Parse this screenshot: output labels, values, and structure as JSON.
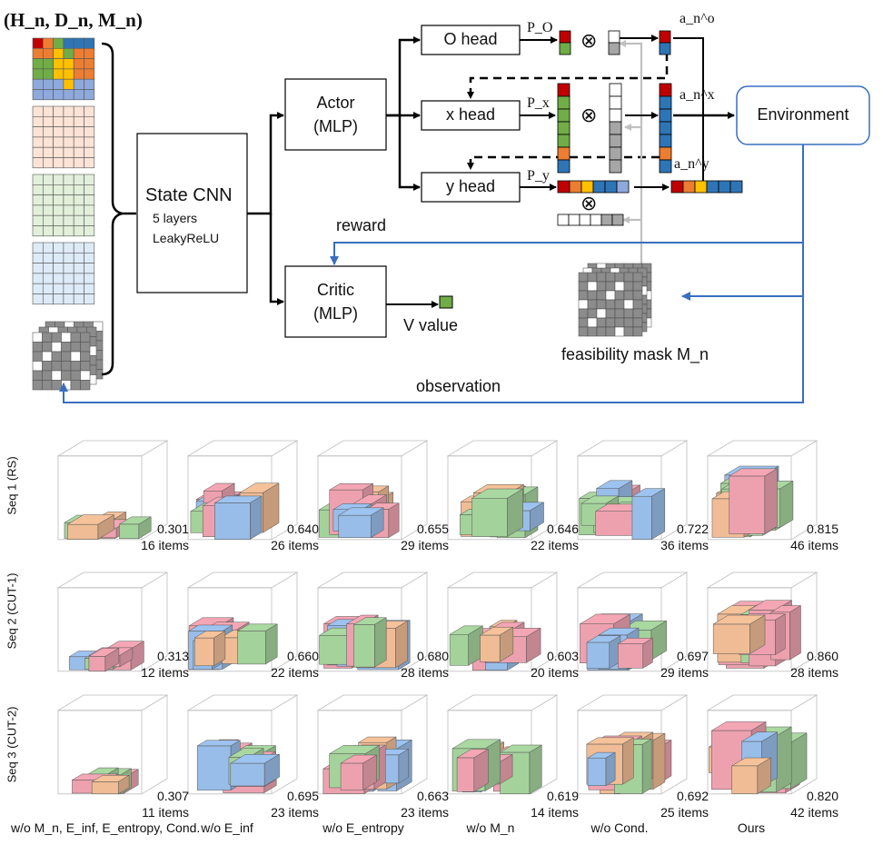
{
  "diagram": {
    "input_label": "(H_n, D_n, M_n)",
    "state_cnn": {
      "title": "State CNN",
      "line1": "5 layers",
      "line2": "LeakyReLU"
    },
    "actor": {
      "line1": "Actor",
      "line2": "(MLP)"
    },
    "critic": {
      "line1": "Critic",
      "line2": "(MLP)"
    },
    "heads": {
      "o": "O head",
      "x": "x head",
      "y": "y head"
    },
    "probs": {
      "o": "P_O",
      "x": "P_x",
      "y": "P_y"
    },
    "actions": {
      "o": "a_n^o",
      "x": "a_n^x",
      "y": "a_n^y"
    },
    "op_symbol": "⊗",
    "environment": "Environment",
    "reward": "reward",
    "observation": "observation",
    "v_value": "V value",
    "feasibility_mask": "feasibility mask M_n",
    "colors": {
      "arrow_blue": "#3a6fbf",
      "mask_arrow": "#c0c0c0",
      "red": "#c00000",
      "green": "#70ad47",
      "blue": "#2e75b6",
      "yellow": "#ffc000",
      "orange": "#ed7d31",
      "gray": "#a6a6a6"
    }
  },
  "results": {
    "row_labels": [
      "Seq 1 (RS)",
      "Seq 2 (CUT-1)",
      "Seq 3 (CUT-2)"
    ],
    "rows": [
      [
        {
          "score": "0.301",
          "items": "16 items"
        },
        {
          "score": "0.640",
          "items": "26 items"
        },
        {
          "score": "0.655",
          "items": "29 items"
        },
        {
          "score": "0.646",
          "items": "22 items"
        },
        {
          "score": "0.722",
          "items": "36 items"
        },
        {
          "score": "0.815",
          "items": "46 items"
        }
      ],
      [
        {
          "score": "0.313",
          "items": "12 items"
        },
        {
          "score": "0.660",
          "items": "22 items"
        },
        {
          "score": "0.680",
          "items": "28 items"
        },
        {
          "score": "0.603",
          "items": "20 items"
        },
        {
          "score": "0.697",
          "items": "29 items"
        },
        {
          "score": "0.860",
          "items": "28 items"
        }
      ],
      [
        {
          "score": "0.307",
          "items": "11 items"
        },
        {
          "score": "0.695",
          "items": "23 items"
        },
        {
          "score": "0.663",
          "items": "23 items"
        },
        {
          "score": "0.619",
          "items": "14 items"
        },
        {
          "score": "0.692",
          "items": "25 items"
        },
        {
          "score": "0.820",
          "items": "42 items"
        }
      ]
    ],
    "captions": [
      "w/o M_n, E_inf, E_entropy, Cond.",
      "w/o E_inf",
      "w/o E_entropy",
      "w/o M_n",
      "w/o Cond.",
      "Ours"
    ],
    "box_colors": [
      "#f4a6b4",
      "#9dc3f0",
      "#a9d8a0",
      "#f6c29a"
    ]
  }
}
